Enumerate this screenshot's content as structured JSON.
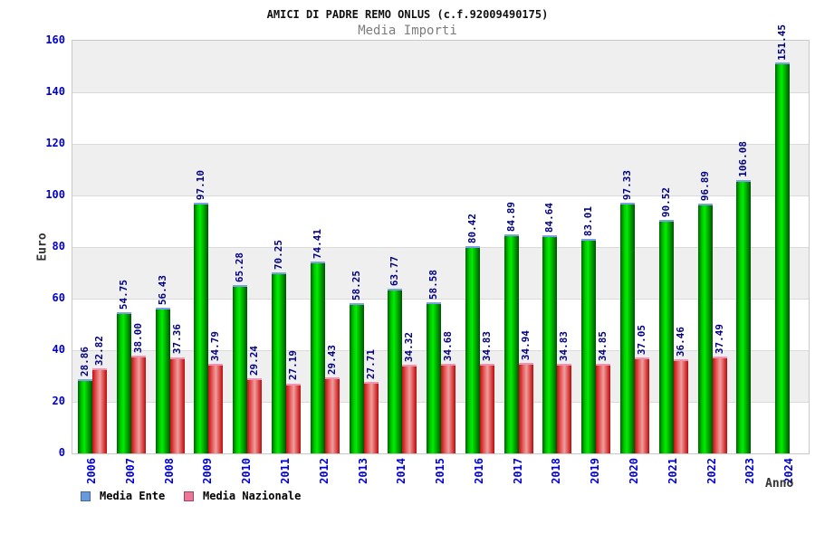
{
  "header": {
    "title": "AMICI DI PADRE REMO ONLUS (c.f.92009490175)",
    "subtitle": "Media Importi"
  },
  "chart_data": {
    "type": "bar",
    "title": "AMICI DI PADRE REMO ONLUS (c.f.92009490175)",
    "subtitle": "Media Importi",
    "xlabel": "Anno",
    "ylabel": "Euro",
    "ylim": [
      0,
      160
    ],
    "yticks": [
      0,
      20,
      40,
      60,
      80,
      100,
      120,
      140,
      160
    ],
    "grid": "horizontal-bands-alternating",
    "legend_position": "bottom-left",
    "categories": [
      "2006",
      "2007",
      "2008",
      "2009",
      "2010",
      "2011",
      "2012",
      "2013",
      "2014",
      "2015",
      "2016",
      "2017",
      "2018",
      "2019",
      "2020",
      "2021",
      "2022",
      "2023",
      "2024"
    ],
    "series": [
      {
        "name": "Media Ente",
        "bar_color": "#00cc00",
        "legend_color": "#6699dd",
        "values": [
          28.86,
          54.75,
          56.43,
          97.1,
          65.28,
          70.25,
          74.41,
          58.25,
          63.77,
          58.58,
          80.42,
          84.89,
          84.64,
          83.01,
          97.33,
          90.52,
          96.89,
          106.08,
          151.45
        ]
      },
      {
        "name": "Media Nazionale",
        "bar_color": "#ee6677",
        "legend_color": "#ee7799",
        "values": [
          32.82,
          38.0,
          37.36,
          34.79,
          29.24,
          27.19,
          29.43,
          27.71,
          34.32,
          34.68,
          34.83,
          34.94,
          34.83,
          34.85,
          37.05,
          36.46,
          37.49,
          null,
          null
        ]
      }
    ],
    "value_label_color": "#000080",
    "axis_label_color": "#0000cc",
    "band_gray": "#efefef"
  }
}
